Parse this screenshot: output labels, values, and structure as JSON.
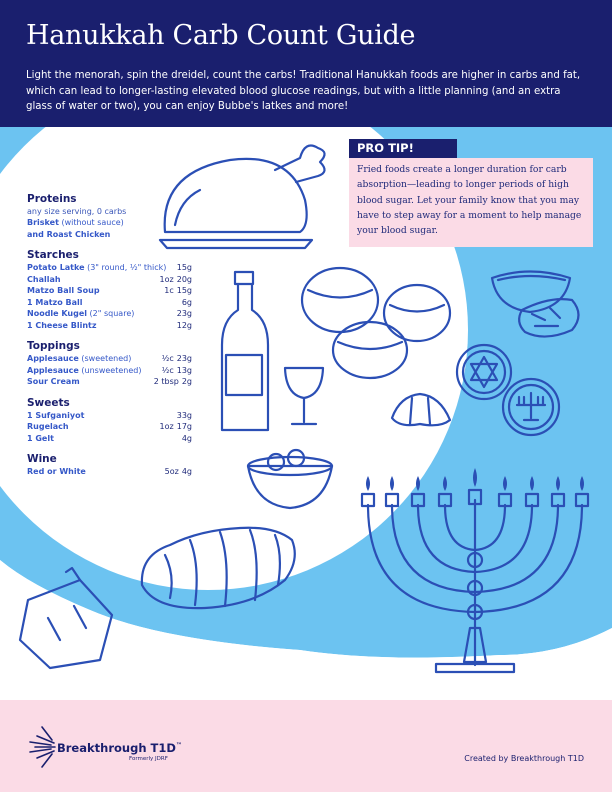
{
  "header": {
    "title": "Hanukkah Carb Count Guide",
    "intro": "Light the menorah, spin the dreidel, count the carbs! Traditional Hanukkah foods are higher in carbs and fat, which can lead to longer-lasting elevated blood glucose readings, but with a little planning (and an extra glass of water or two), you can enjoy Bubbe's latkes and more!"
  },
  "tip": {
    "heading": "PRO TIP!",
    "text": "Fried foods create a longer duration for carb absorption—leading to longer periods of high blood sugar. Let your family know that you may have to step away for a moment to help manage your blood sugar."
  },
  "proteins": {
    "title": "Proteins",
    "note": "any size serving, 0 carbs",
    "item1_name": "Brisket",
    "item1_sub": " (without sauce)",
    "item2_name": "and Roast Chicken"
  },
  "starches": {
    "title": "Starches",
    "items": [
      {
        "name": "Potato Latke",
        "sub": " (3\" round, ½\" thick)",
        "serving": "",
        "carbs": "15g"
      },
      {
        "name": "Challah",
        "sub": "",
        "serving": "1oz",
        "carbs": "20g"
      },
      {
        "name": "Matzo Ball Soup",
        "sub": "",
        "serving": "1c",
        "carbs": "15g"
      },
      {
        "name": "1 Matzo Ball",
        "sub": "",
        "serving": "",
        "carbs": "6g"
      },
      {
        "name": "Noodle Kugel",
        "sub": " (2\" square)",
        "serving": "",
        "carbs": "23g"
      },
      {
        "name": "1 Cheese Blintz",
        "sub": "",
        "serving": "",
        "carbs": "12g"
      }
    ]
  },
  "toppings": {
    "title": "Toppings",
    "items": [
      {
        "name": "Applesauce",
        "sub": " (sweetened)",
        "serving": "½c",
        "carbs": "23g"
      },
      {
        "name": "Applesauce",
        "sub": " (unsweetened)",
        "serving": "½c",
        "carbs": "13g"
      },
      {
        "name": "Sour Cream",
        "sub": "",
        "serving": "2 tbsp",
        "carbs": "2g"
      }
    ]
  },
  "sweets": {
    "title": "Sweets",
    "items": [
      {
        "name": "1 Sufganiyot",
        "sub": "",
        "serving": "",
        "carbs": "33g"
      },
      {
        "name": "Rugelach",
        "sub": "",
        "serving": "1oz",
        "carbs": "17g"
      },
      {
        "name": "1 Gelt",
        "sub": "",
        "serving": "",
        "carbs": "4g"
      }
    ]
  },
  "wine": {
    "title": "Wine",
    "items": [
      {
        "name": "Red or White",
        "sub": "",
        "serving": "5oz",
        "carbs": "4g"
      }
    ]
  },
  "footer": {
    "logo_name": "Breakthrough T1D",
    "logo_tm": "™",
    "logo_sub": "Formerly JDRF",
    "credit": "Created by Breakthrough T1D"
  },
  "colors": {
    "navy": "#1a1f6e",
    "sky": "#6cc3f1",
    "pink": "#fbdbe6",
    "line_blue": "#2b4fb5",
    "label_blue": "#3558c8"
  }
}
